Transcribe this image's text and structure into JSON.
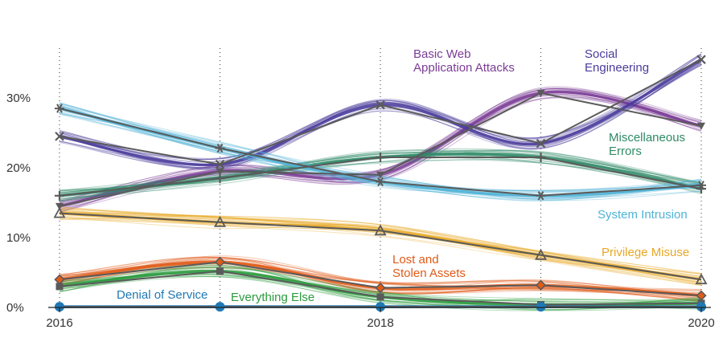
{
  "chart_data": {
    "type": "line",
    "title": "",
    "xlabel": "",
    "ylabel": "",
    "x": [
      2016,
      2017,
      2018,
      2019,
      2020
    ],
    "x_tick_labels": [
      "2016",
      "2018",
      "2020"
    ],
    "y_tick_labels": [
      "0%",
      "10%",
      "20%",
      "30%"
    ],
    "ylim": [
      0,
      37
    ],
    "grid": "vertical dotted lines at each year",
    "series": [
      {
        "name": "Basic Web\nApplication Attacks",
        "values": [
          14.5,
          19.5,
          19.0,
          30.7,
          26.0
        ],
        "color": "#7b3c96",
        "marker": "triangle-down"
      },
      {
        "name": "Social\nEngineering",
        "values": [
          24.5,
          20.5,
          29.0,
          23.5,
          35.5
        ],
        "color": "#4a3c9c",
        "marker": "x"
      },
      {
        "name": "Miscellaneous\nErrors",
        "values": [
          16.0,
          18.5,
          21.5,
          21.5,
          17.0
        ],
        "color": "#2e8a66",
        "marker": "plus"
      },
      {
        "name": "System Intrusion",
        "values": [
          28.5,
          22.8,
          18.0,
          16.0,
          17.5
        ],
        "color": "#4fb3d6",
        "marker": "asterisk"
      },
      {
        "name": "Privilege Misuse",
        "values": [
          13.5,
          12.2,
          11.0,
          7.5,
          4.0
        ],
        "color": "#e8a826",
        "marker": "triangle-up"
      },
      {
        "name": "Lost and\nStolen Assets",
        "values": [
          4.0,
          6.5,
          2.8,
          3.2,
          1.7
        ],
        "color": "#e05a17",
        "marker": "diamond"
      },
      {
        "name": "Everything Else",
        "values": [
          3.0,
          5.2,
          1.5,
          0.4,
          0.6
        ],
        "color": "#2a9b3d",
        "marker": "square"
      },
      {
        "name": "Denial of Service",
        "values": [
          0.1,
          0.1,
          0.1,
          0.1,
          0.1
        ],
        "color": "#1f78b4",
        "marker": "circle"
      }
    ],
    "labels": [
      {
        "series": 0,
        "lines": [
          "Basic Web",
          "Application Attacks"
        ],
        "color": "#7b3c96"
      },
      {
        "series": 1,
        "lines": [
          "Social",
          "Engineering"
        ],
        "color": "#4a3c9c"
      },
      {
        "series": 2,
        "lines": [
          "Miscellaneous",
          "Errors"
        ],
        "color": "#2e8a66"
      },
      {
        "series": 3,
        "lines": [
          "System Intrusion"
        ],
        "color": "#4fb3d6"
      },
      {
        "series": 4,
        "lines": [
          "Privilege Misuse"
        ],
        "color": "#e8a826"
      },
      {
        "series": 5,
        "lines": [
          "Lost and",
          "Stolen Assets"
        ],
        "color": "#e05a17"
      },
      {
        "series": 6,
        "lines": [
          "Everything Else"
        ],
        "color": "#2a9b3d"
      },
      {
        "series": 7,
        "lines": [
          "Denial of Service"
        ],
        "color": "#1f78b4"
      }
    ],
    "trend_line_color": "#5a5a5a"
  }
}
